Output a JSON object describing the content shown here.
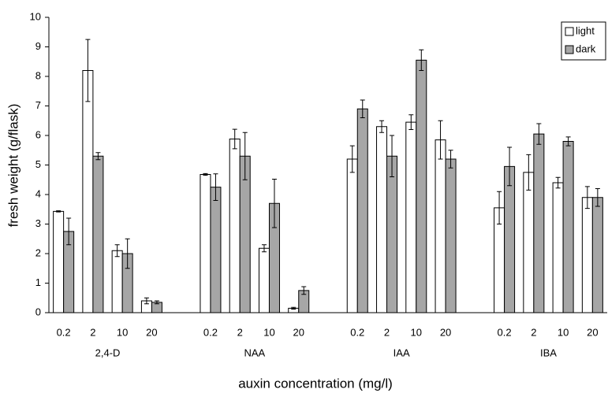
{
  "chart_data": {
    "type": "bar",
    "x_label": "auxin concentration (mg/l)",
    "y_label": "fresh weight (g/flask)",
    "groups": [
      "2,4-D",
      "NAA",
      "IAA",
      "IBA"
    ],
    "categories": [
      "0.2",
      "2",
      "10",
      "20",
      "0.2",
      "2",
      "10",
      "20",
      "0.2",
      "2",
      "10",
      "20",
      "0.2",
      "2",
      "10",
      "20"
    ],
    "series": [
      {
        "name": "light",
        "color": "#ffffff",
        "values": [
          3.43,
          8.2,
          2.1,
          0.4,
          4.68,
          5.88,
          2.18,
          0.15,
          5.2,
          6.3,
          6.45,
          5.85,
          3.55,
          4.75,
          4.4,
          3.9
        ],
        "errors": [
          0.02,
          1.05,
          0.2,
          0.1,
          0.03,
          0.33,
          0.12,
          0.03,
          0.45,
          0.2,
          0.25,
          0.65,
          0.55,
          0.6,
          0.18,
          0.37
        ]
      },
      {
        "name": "dark",
        "color": "#a6a6a6",
        "values": [
          2.75,
          5.3,
          2.0,
          0.35,
          4.25,
          5.3,
          3.7,
          0.75,
          6.9,
          5.3,
          8.55,
          5.2,
          4.95,
          6.05,
          5.8,
          3.9
        ],
        "errors": [
          0.45,
          0.12,
          0.5,
          0.05,
          0.45,
          0.8,
          0.82,
          0.13,
          0.3,
          0.7,
          0.35,
          0.3,
          0.65,
          0.35,
          0.15,
          0.3
        ]
      }
    ],
    "ylim": [
      0,
      10
    ],
    "yticks": [
      0,
      1,
      2,
      3,
      4,
      5,
      6,
      7,
      8,
      9,
      10
    ],
    "legend": "top-right"
  }
}
